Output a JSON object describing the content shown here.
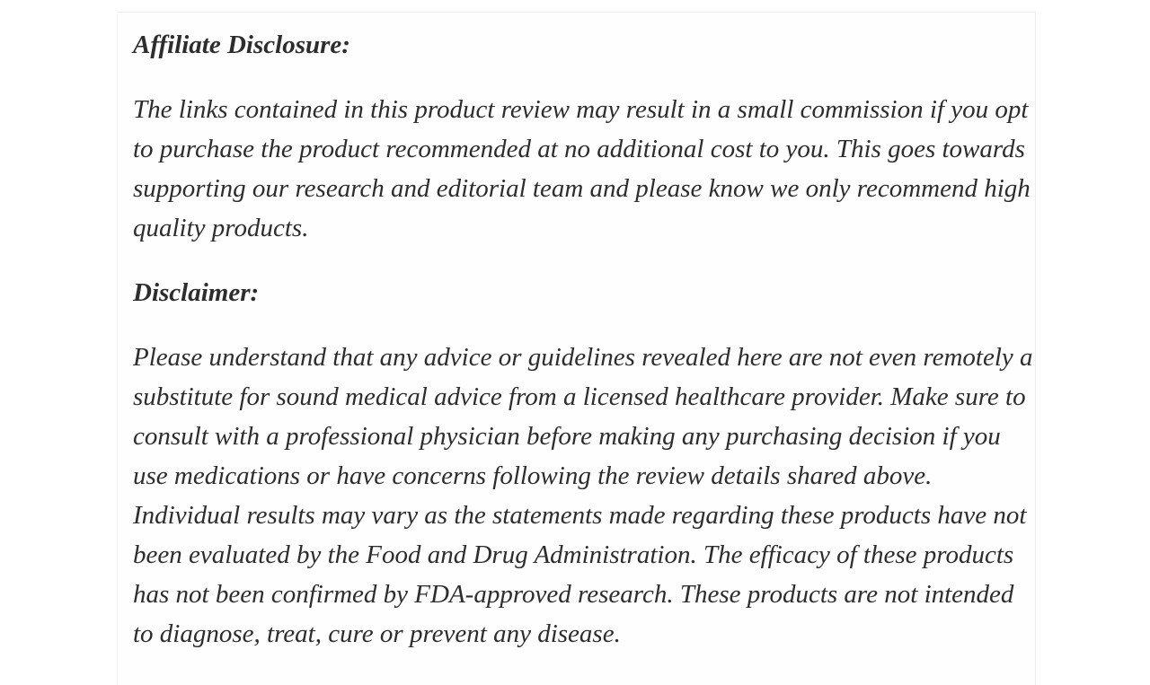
{
  "page": {
    "background_color": "#ffffff",
    "card_border_color": "#ededed",
    "text_color": "#2d2d2d"
  },
  "article": {
    "sections": [
      {
        "heading": "Affiliate Disclosure:",
        "paragraph": "The links contained in this product review may result in a small commission if you opt to purchase the product recommended at no additional cost to you. This goes towards supporting our research and editorial team and please know we only recommend high quality products."
      },
      {
        "heading": "Disclaimer:",
        "paragraph": "Please understand that any advice or guidelines revealed here are not even remotely a substitute for sound medical advice from a licensed healthcare provider. Make sure to consult with a professional physician before making any purchasing decision if you use medications or have concerns following the review details shared above. Individual results may vary as the statements made regarding these products have not been evaluated by the Food and Drug Administration. The efficacy of these products has not been confirmed by FDA-approved research. These products are not intended to diagnose, treat, cure or prevent any disease."
      }
    ]
  }
}
